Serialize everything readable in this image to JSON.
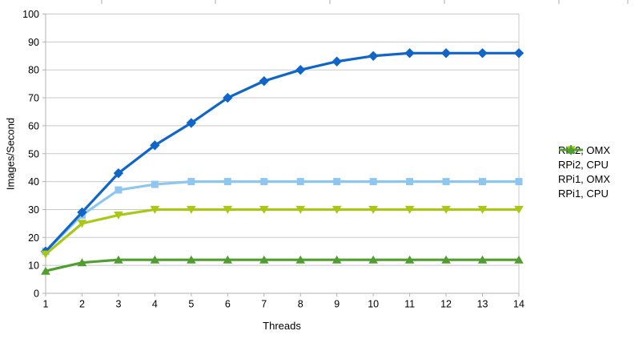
{
  "chart_data": {
    "type": "line",
    "title": "",
    "xlabel": "Threads",
    "ylabel": "Images/Second",
    "x": [
      1,
      2,
      3,
      4,
      5,
      6,
      7,
      8,
      9,
      10,
      11,
      12,
      13,
      14
    ],
    "xlim": [
      1,
      14
    ],
    "ylim": [
      0,
      100
    ],
    "yticks": [
      0,
      10,
      20,
      30,
      40,
      50,
      60,
      70,
      80,
      90,
      100
    ],
    "grid": "horizontal",
    "legend_position": "right",
    "series": [
      {
        "name": "RPi2, OMX",
        "color": "#8dc6f0",
        "marker": "square",
        "values": [
          15,
          28,
          37,
          39,
          40,
          40,
          40,
          40,
          40,
          40,
          40,
          40,
          40,
          40
        ]
      },
      {
        "name": "RPi2, CPU",
        "color": "#1065c8",
        "marker": "diamond",
        "values": [
          15,
          29,
          43,
          53,
          61,
          70,
          76,
          80,
          83,
          85,
          86,
          86,
          86,
          86
        ]
      },
      {
        "name": "RPi1, OMX",
        "color": "#a9c814",
        "marker": "triangle-down",
        "values": [
          14,
          25,
          28,
          30,
          30,
          30,
          30,
          30,
          30,
          30,
          30,
          30,
          30,
          30
        ]
      },
      {
        "name": "RPi1, CPU",
        "color": "#509e2f",
        "marker": "triangle-up",
        "values": [
          8,
          11,
          12,
          12,
          12,
          12,
          12,
          12,
          12,
          12,
          12,
          12,
          12,
          12
        ]
      }
    ]
  },
  "colors": {
    "background": "#ffffff",
    "gridline": "#c8c8c8",
    "axis": "#b0b0b0",
    "text": "#000000"
  }
}
